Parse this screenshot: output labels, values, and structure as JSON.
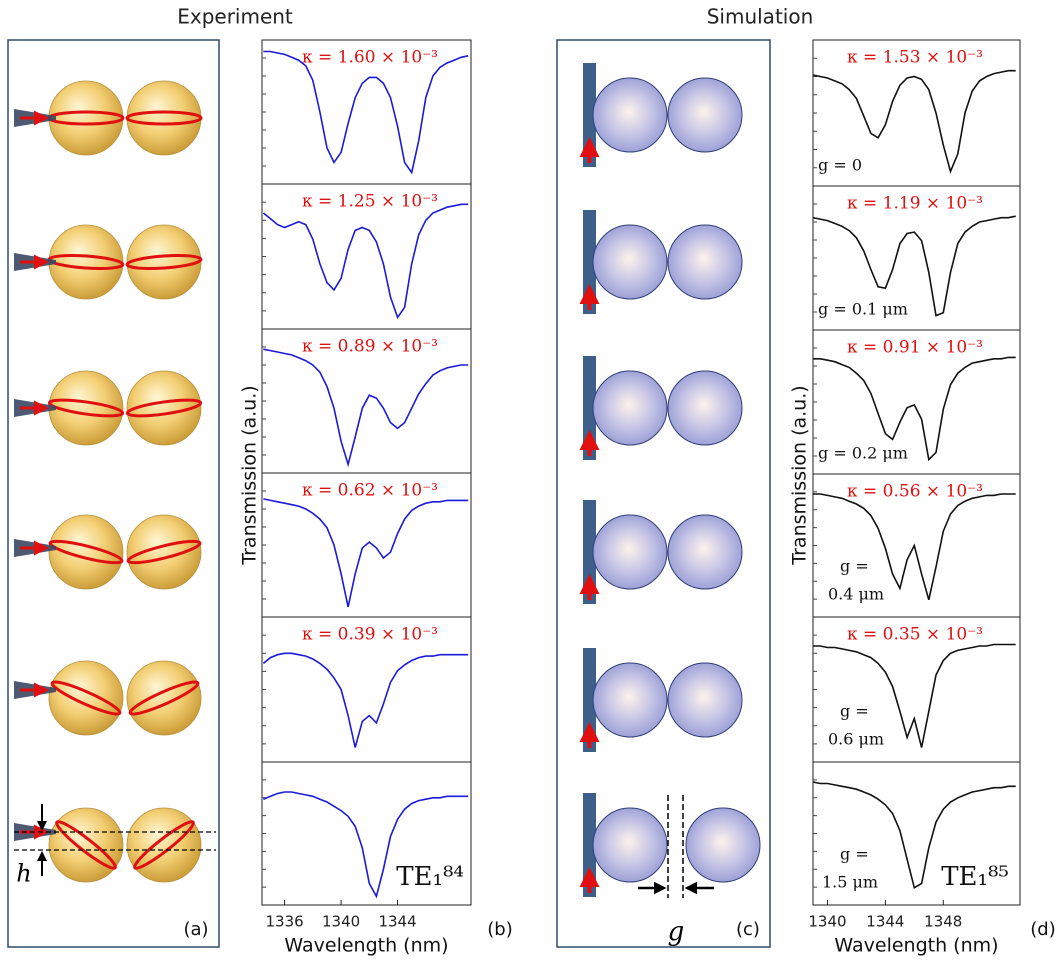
{
  "headers": [
    "Experiment",
    "Simulation"
  ],
  "diagrams": [
    {
      "panel_label": "(a)",
      "height_label": "h"
    },
    {
      "panel_label": "(c)",
      "gap_label": "g"
    }
  ],
  "chart_data": [
    {
      "type": "line",
      "panel_label": "(b)",
      "xlabel": "Wavelength (nm)",
      "ylabel": "Transmission (a.u.)",
      "color": "#1a1adb",
      "xlim": [
        1334.4,
        1349.2
      ],
      "xticks": [
        1336,
        1340,
        1344
      ],
      "ylim": [
        0,
        1
      ],
      "x": [
        1334.5,
        1335,
        1335.5,
        1336,
        1336.5,
        1337,
        1337.5,
        1338,
        1338.5,
        1339,
        1339.5,
        1340,
        1340.5,
        1341,
        1341.5,
        1342,
        1342.5,
        1343,
        1343.5,
        1344,
        1344.5,
        1345,
        1345.5,
        1346,
        1346.5,
        1347,
        1347.5,
        1348,
        1348.5,
        1349
      ],
      "subplots": [
        {
          "title": "κ = 1.60 × 10⁻³",
          "values": [
            0.92,
            0.92,
            0.91,
            0.9,
            0.88,
            0.86,
            0.82,
            0.72,
            0.5,
            0.25,
            0.15,
            0.22,
            0.42,
            0.6,
            0.7,
            0.74,
            0.74,
            0.7,
            0.6,
            0.4,
            0.15,
            0.08,
            0.3,
            0.6,
            0.75,
            0.81,
            0.84,
            0.86,
            0.88,
            0.89
          ]
        },
        {
          "title": "κ = 1.25 × 10⁻³",
          "values": [
            0.8,
            0.76,
            0.72,
            0.7,
            0.72,
            0.74,
            0.72,
            0.62,
            0.45,
            0.32,
            0.27,
            0.35,
            0.55,
            0.68,
            0.7,
            0.68,
            0.6,
            0.45,
            0.22,
            0.08,
            0.15,
            0.45,
            0.65,
            0.75,
            0.8,
            0.82,
            0.84,
            0.85,
            0.86,
            0.86
          ]
        },
        {
          "title": "κ = 0.89 × 10⁻³",
          "values": [
            0.86,
            0.85,
            0.84,
            0.83,
            0.82,
            0.8,
            0.78,
            0.75,
            0.7,
            0.6,
            0.45,
            0.22,
            0.06,
            0.25,
            0.45,
            0.54,
            0.52,
            0.45,
            0.35,
            0.31,
            0.35,
            0.45,
            0.55,
            0.62,
            0.68,
            0.71,
            0.73,
            0.74,
            0.75,
            0.75
          ]
        },
        {
          "title": "κ = 0.62 × 10⁻³",
          "values": [
            0.82,
            0.81,
            0.8,
            0.79,
            0.78,
            0.77,
            0.75,
            0.72,
            0.68,
            0.62,
            0.5,
            0.3,
            0.07,
            0.3,
            0.48,
            0.52,
            0.48,
            0.41,
            0.45,
            0.58,
            0.68,
            0.74,
            0.77,
            0.79,
            0.8,
            0.8,
            0.81,
            0.81,
            0.81,
            0.81
          ]
        },
        {
          "title": "κ = 0.39 × 10⁻³",
          "values": [
            0.68,
            0.72,
            0.74,
            0.75,
            0.75,
            0.74,
            0.73,
            0.71,
            0.68,
            0.64,
            0.58,
            0.5,
            0.32,
            0.1,
            0.28,
            0.32,
            0.27,
            0.4,
            0.55,
            0.63,
            0.67,
            0.7,
            0.72,
            0.73,
            0.73,
            0.74,
            0.74,
            0.74,
            0.74,
            0.74
          ]
        },
        {
          "mode_label": "TE₁⁸⁴",
          "values": [
            0.74,
            0.76,
            0.78,
            0.79,
            0.79,
            0.78,
            0.77,
            0.76,
            0.74,
            0.72,
            0.69,
            0.66,
            0.62,
            0.55,
            0.4,
            0.15,
            0.06,
            0.25,
            0.48,
            0.6,
            0.67,
            0.71,
            0.73,
            0.74,
            0.75,
            0.75,
            0.76,
            0.76,
            0.76,
            0.76
          ]
        }
      ]
    },
    {
      "type": "line",
      "panel_label": "(d)",
      "xlabel": "Wavelength (nm)",
      "ylabel": "Transmission (a.u.)",
      "color": "#111111",
      "xlim": [
        1339,
        1353.3
      ],
      "xticks": [
        1340,
        1344,
        1348
      ],
      "ylim": [
        0,
        1
      ],
      "x": [
        1339,
        1339.5,
        1340,
        1340.5,
        1341,
        1341.5,
        1342,
        1342.5,
        1343,
        1343.5,
        1344,
        1344.5,
        1345,
        1345.5,
        1346,
        1346.5,
        1347,
        1347.5,
        1348,
        1348.5,
        1349,
        1349.5,
        1350,
        1350.5,
        1351,
        1351.5,
        1352,
        1352.5,
        1353
      ],
      "subplots": [
        {
          "title": "κ = 1.53 × 10⁻³",
          "annotation": [
            "g = 0"
          ],
          "values": [
            0.76,
            0.75,
            0.74,
            0.72,
            0.7,
            0.66,
            0.6,
            0.48,
            0.36,
            0.33,
            0.42,
            0.58,
            0.69,
            0.74,
            0.75,
            0.73,
            0.66,
            0.5,
            0.28,
            0.1,
            0.22,
            0.5,
            0.65,
            0.72,
            0.75,
            0.77,
            0.78,
            0.79,
            0.79
          ]
        },
        {
          "title": "κ = 1.19 × 10⁻³",
          "annotation": [
            "g = 0.1 μm"
          ],
          "values": [
            0.78,
            0.77,
            0.76,
            0.74,
            0.72,
            0.69,
            0.64,
            0.55,
            0.42,
            0.3,
            0.29,
            0.42,
            0.6,
            0.67,
            0.68,
            0.62,
            0.4,
            0.1,
            0.12,
            0.4,
            0.6,
            0.68,
            0.72,
            0.75,
            0.76,
            0.77,
            0.78,
            0.78,
            0.79
          ]
        },
        {
          "title": "κ = 0.91 × 10⁻³",
          "annotation": [
            "g = 0.2 μm"
          ],
          "values": [
            0.8,
            0.8,
            0.79,
            0.78,
            0.76,
            0.74,
            0.7,
            0.65,
            0.56,
            0.42,
            0.28,
            0.24,
            0.36,
            0.46,
            0.48,
            0.38,
            0.1,
            0.15,
            0.45,
            0.62,
            0.7,
            0.74,
            0.77,
            0.78,
            0.79,
            0.8,
            0.8,
            0.81,
            0.81
          ]
        },
        {
          "title": "κ = 0.56 × 10⁻³",
          "annotation": [
            "g =",
            "0.4 μm"
          ],
          "values": [
            0.86,
            0.86,
            0.85,
            0.84,
            0.83,
            0.81,
            0.79,
            0.76,
            0.71,
            0.62,
            0.48,
            0.3,
            0.2,
            0.4,
            0.5,
            0.3,
            0.12,
            0.35,
            0.6,
            0.72,
            0.78,
            0.81,
            0.83,
            0.84,
            0.85,
            0.85,
            0.86,
            0.86,
            0.86
          ]
        },
        {
          "title": "κ = 0.35 × 10⁻³",
          "annotation": [
            "g =",
            "0.6 μm"
          ],
          "values": [
            0.8,
            0.8,
            0.79,
            0.79,
            0.78,
            0.77,
            0.76,
            0.74,
            0.72,
            0.68,
            0.62,
            0.52,
            0.35,
            0.17,
            0.3,
            0.1,
            0.35,
            0.6,
            0.7,
            0.75,
            0.77,
            0.78,
            0.79,
            0.8,
            0.8,
            0.81,
            0.81,
            0.81,
            0.81
          ]
        },
        {
          "mode_label": "TE₁⁸⁵",
          "annotation": [
            "g =",
            "1.5 μm"
          ],
          "values": [
            0.86,
            0.85,
            0.85,
            0.84,
            0.83,
            0.82,
            0.81,
            0.79,
            0.77,
            0.74,
            0.7,
            0.64,
            0.52,
            0.32,
            0.12,
            0.15,
            0.4,
            0.58,
            0.67,
            0.72,
            0.75,
            0.77,
            0.79,
            0.8,
            0.81,
            0.82,
            0.82,
            0.83,
            0.83
          ]
        }
      ]
    }
  ]
}
